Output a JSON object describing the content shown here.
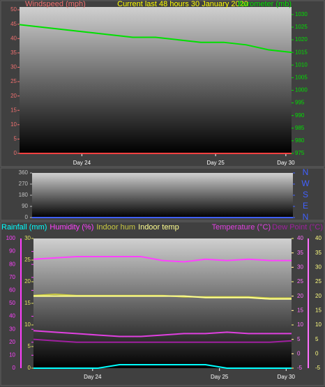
{
  "chart_data": [
    {
      "type": "line",
      "title": "Current last 48 hours 30 January 2020",
      "title_color": "#ffff00",
      "xlim": [
        0,
        48
      ],
      "xticks": [
        {
          "value": 11,
          "label": "Day 24"
        },
        {
          "value": 34.6,
          "label": "Day 25"
        },
        {
          "value": 47,
          "label": "Day 30"
        }
      ],
      "ylim": [
        0,
        51
      ],
      "yticks": [
        0,
        5,
        10,
        15,
        20,
        25,
        30,
        35,
        40,
        45,
        50
      ],
      "y2lim": [
        975,
        1033
      ],
      "y2ticks": [
        975,
        980,
        985,
        990,
        995,
        1000,
        1005,
        1010,
        1015,
        1020,
        1025,
        1030
      ],
      "axis_colors": {
        "y": "#f07070",
        "y2": "#00e000"
      },
      "x": [
        0,
        4,
        8,
        12,
        16,
        20,
        24,
        28,
        32,
        36,
        40,
        44,
        48
      ],
      "series": [
        {
          "name": "Windspeed (mph)",
          "color": "#ff4040",
          "axis": "y",
          "values": [
            0,
            0,
            0,
            0,
            0,
            0,
            0,
            0,
            0,
            0,
            0,
            0,
            0
          ]
        },
        {
          "name": "Barometer (mb)",
          "color": "#00e000",
          "axis": "y2",
          "values": [
            1026,
            1025,
            1024,
            1023,
            1022,
            1021,
            1021,
            1020,
            1019,
            1019,
            1018,
            1016,
            1015
          ]
        }
      ]
    },
    {
      "type": "line",
      "xlim": [
        0,
        48
      ],
      "ylim": [
        0,
        360
      ],
      "yticks": [
        0,
        90,
        180,
        270,
        360
      ],
      "y2lim": [
        0,
        360
      ],
      "y2ticks": [
        {
          "value": 360,
          "label": "N"
        },
        {
          "value": 270,
          "label": "W"
        },
        {
          "value": 180,
          "label": "S"
        },
        {
          "value": 90,
          "label": "E"
        },
        {
          "value": 0,
          "label": "N"
        }
      ],
      "axis_colors": {
        "y": "#c0c0c0",
        "y2": "#4060ff"
      },
      "x": [
        0,
        4,
        8,
        12,
        16,
        20,
        24,
        28,
        32,
        36,
        40,
        44,
        48
      ],
      "series": [
        {
          "color": "#4060ff",
          "axis": "y",
          "values": [
            0,
            0,
            0,
            0,
            0,
            0,
            0,
            0,
            0,
            0,
            0,
            0,
            0
          ]
        }
      ]
    },
    {
      "type": "line",
      "xlim": [
        0,
        48
      ],
      "xticks": [
        {
          "value": 11,
          "label": "Day 24"
        },
        {
          "value": 34.6,
          "label": "Day 25"
        },
        {
          "value": 47,
          "label": "Day 30"
        }
      ],
      "ylim": [
        0,
        100
      ],
      "yticks": [
        0,
        10,
        20,
        30,
        40,
        50,
        60,
        70,
        80,
        90,
        100
      ],
      "y3lim": [
        0,
        30
      ],
      "y3ticks": [
        0,
        5,
        10,
        15,
        20,
        25,
        30
      ],
      "y2lim": [
        -5,
        40
      ],
      "y2ticks": [
        -5,
        0,
        5,
        10,
        15,
        20,
        25,
        30,
        35,
        40
      ],
      "y4lim": [
        -5,
        40
      ],
      "y4ticks": [
        -5,
        0,
        5,
        10,
        15,
        20,
        25,
        30,
        35,
        40
      ],
      "axis_colors": {
        "y": "#ff40ff",
        "y3": "#e0e060",
        "y2": "#ff70ff",
        "y4": "#ffff80"
      },
      "x": [
        0,
        4,
        8,
        12,
        16,
        20,
        24,
        28,
        32,
        36,
        40,
        44,
        48
      ],
      "series": [
        {
          "name": "Rainfall (mm)",
          "color": "#00ffff",
          "axis": "y3",
          "values": [
            0,
            0,
            0,
            0,
            0.8,
            0.8,
            0.8,
            0.8,
            0.8,
            0,
            0,
            0,
            0
          ]
        },
        {
          "name": "Humidity (%)",
          "color": "#ff40ff",
          "axis": "y",
          "values": [
            84,
            85,
            86,
            86,
            86,
            86,
            83,
            82,
            84,
            83,
            84,
            83,
            83
          ]
        },
        {
          "name": "Indoor hum",
          "color": "#c8c840",
          "axis": "y",
          "values": [
            56,
            57,
            56,
            56,
            56,
            56,
            56,
            55,
            55,
            55,
            55,
            54,
            54
          ]
        },
        {
          "name": "Indoor temp",
          "color": "#ffff90",
          "axis": "y2",
          "values": [
            20,
            20,
            20,
            20,
            20,
            20,
            20,
            20,
            19.5,
            19.5,
            19.5,
            19,
            19
          ]
        },
        {
          "name": "Temperature (°C)",
          "color": "#e040e0",
          "axis": "y2",
          "values": [
            8,
            7.5,
            7,
            6.5,
            6,
            6,
            6.5,
            7,
            7,
            7.5,
            7,
            7,
            7
          ]
        },
        {
          "name": "Dew Point (°C)",
          "color": "#a020a0",
          "axis": "y4",
          "values": [
            5,
            4.5,
            4,
            4,
            4,
            4,
            4,
            4,
            4,
            4,
            4,
            4,
            4.5
          ]
        }
      ]
    }
  ]
}
